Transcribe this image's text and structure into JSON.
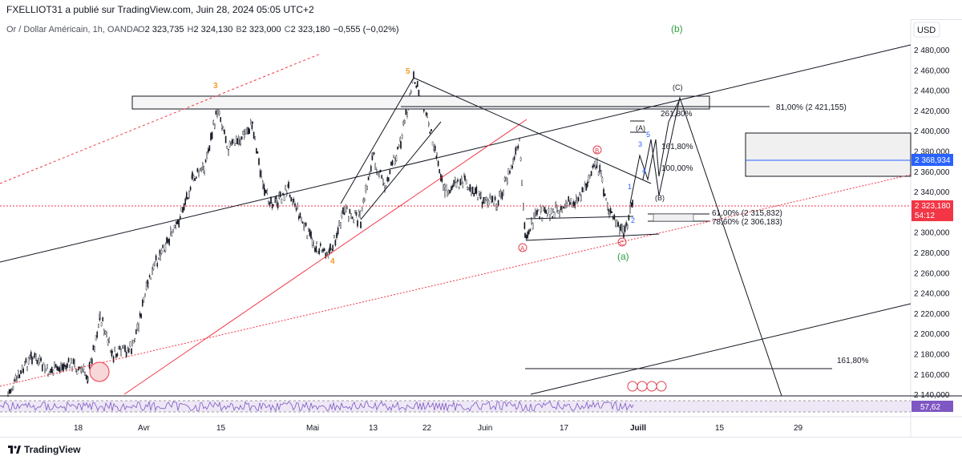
{
  "header": {
    "publish_line": "FXELLIOT31 a publié sur TradingView.com, Juin 28, 2024 05:05 UTC+2"
  },
  "legend": {
    "symbol": "Or / Dollar Américain, 1h, OANDA",
    "open_label": "O",
    "open_value": "2 323,735",
    "high_label": "H",
    "high_value": "2 324,130",
    "low_label": "B",
    "low_value": "2 323,000",
    "close_label": "C",
    "close_value": "2 323,180",
    "change": "−0,555 (−0,02%)"
  },
  "currency_button": "USD",
  "price_axis": {
    "ticks": [
      "2 480,000",
      "2 460,000",
      "2 440,000",
      "2 420,000",
      "2 400,000",
      "2 380,000",
      "2 360,000",
      "2 340,000",
      "2 320,000",
      "2 300,000",
      "2 280,000",
      "2 260,000",
      "2 240,000",
      "2 220,000",
      "2 200,000",
      "2 180,000",
      "2 160,000",
      "2 140,000"
    ],
    "price_tag_blue": "2 368,934",
    "price_tag_red": "2 323,180",
    "countdown": "54:12",
    "rsi_value": "57,62"
  },
  "time_axis": {
    "labels": [
      "18",
      "Avr",
      "15",
      "Mai",
      "13",
      "22",
      "Juin",
      "17",
      "Juill",
      "15",
      "29"
    ]
  },
  "annotations": {
    "fib_81": "81,00% (2 421,155)",
    "fib_261": "261,80%",
    "fib_161_upper": "161,80%",
    "fib_100": "100,00%",
    "fib_61": "61,00% (2 315,832)",
    "fib_78": "78,60% (2 306,183)",
    "fib_161_lower": "161,80%",
    "wave_3": "3",
    "wave_4": "4",
    "wave_5": "5",
    "wave_a_circle": "A",
    "wave_b_circle": "B",
    "wave_c_circle": "C",
    "wave_a_paren": "(a)",
    "wave_b_paren": "(b)",
    "wave_A_cap": "(A)",
    "wave_B_cap": "(B)",
    "wave_C_cap": "(C)",
    "sub_1": "1",
    "sub_2": "2",
    "sub_3": "3",
    "sub_4": "4",
    "sub_5": "5"
  },
  "branding": {
    "logo_text": "TradingView"
  },
  "colors": {
    "up": "#131722",
    "wave_orange": "#f59a23",
    "wave_green": "#2e9e3e",
    "wave_red": "#e0414f",
    "wave_blue": "#2962ff",
    "trend_red": "#f23645",
    "rsi_purple": "#7e57c2"
  }
}
